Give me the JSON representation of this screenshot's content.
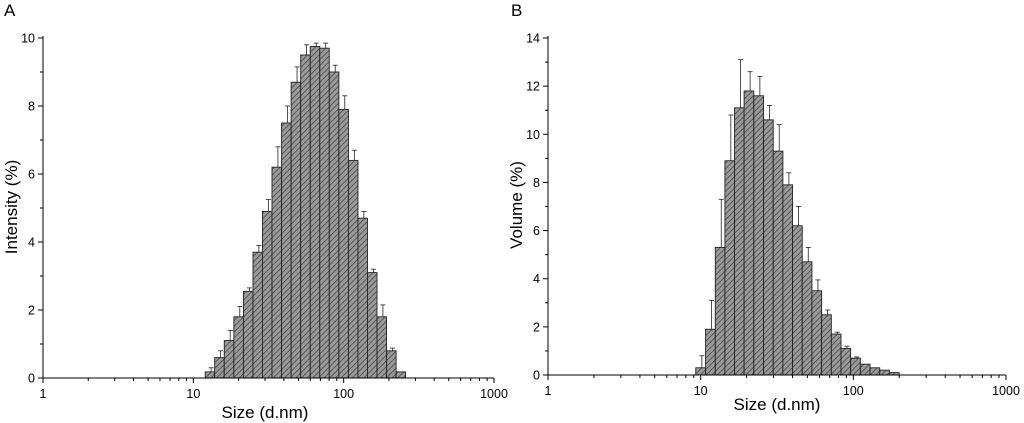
{
  "chart_data": [
    {
      "type": "bar",
      "panel_label": "A",
      "xlabel": "Size (d.nm)",
      "ylabel": "Intensity (%)",
      "xscale": "log",
      "xlim": [
        1,
        1000
      ],
      "ylim": [
        0,
        10
      ],
      "xticks": [
        1,
        10,
        100,
        1000
      ],
      "xtick_labels": [
        "1",
        "10",
        "100",
        "1000"
      ],
      "yticks": [
        0,
        2,
        4,
        6,
        8,
        10
      ],
      "ytick_labels": [
        "0",
        "2",
        "4",
        "6",
        "8",
        "10"
      ],
      "grid": false,
      "bars": [
        {
          "x": 12.9,
          "y": 0.18,
          "err": 0.12
        },
        {
          "x": 14.9,
          "y": 0.6,
          "err": 0.2
        },
        {
          "x": 17.3,
          "y": 1.1,
          "err": 0.3
        },
        {
          "x": 20.0,
          "y": 1.8,
          "err": 0.3
        },
        {
          "x": 23.2,
          "y": 2.55,
          "err": 0.1
        },
        {
          "x": 26.8,
          "y": 3.7,
          "err": 0.2
        },
        {
          "x": 31.0,
          "y": 4.9,
          "err": 0.35
        },
        {
          "x": 35.9,
          "y": 6.2,
          "err": 0.6
        },
        {
          "x": 41.6,
          "y": 7.5,
          "err": 0.5
        },
        {
          "x": 48.1,
          "y": 8.7,
          "err": 0.45
        },
        {
          "x": 55.7,
          "y": 9.5,
          "err": 0.3
        },
        {
          "x": 64.5,
          "y": 9.75,
          "err": 0.1
        },
        {
          "x": 74.6,
          "y": 9.7,
          "err": 0.15
        },
        {
          "x": 86.3,
          "y": 9.0,
          "err": 0.2
        },
        {
          "x": 100.0,
          "y": 7.9,
          "err": 0.4
        },
        {
          "x": 115.7,
          "y": 6.4,
          "err": 0.3
        },
        {
          "x": 133.9,
          "y": 4.7,
          "err": 0.2
        },
        {
          "x": 154.9,
          "y": 3.1,
          "err": 0.1
        },
        {
          "x": 179.3,
          "y": 1.8,
          "err": 0.35
        },
        {
          "x": 207.5,
          "y": 0.8,
          "err": 0.08
        },
        {
          "x": 240.1,
          "y": 0.18,
          "err": 0.0
        }
      ]
    },
    {
      "type": "bar",
      "panel_label": "B",
      "xlabel": "Size (d.nm)",
      "ylabel": "Volume (%)",
      "xscale": "log",
      "xlim": [
        1,
        1000
      ],
      "ylim": [
        0,
        14
      ],
      "xticks": [
        1,
        10,
        100,
        1000
      ],
      "xtick_labels": [
        "1",
        "10",
        "100",
        "1000"
      ],
      "yticks": [
        0,
        2,
        4,
        6,
        8,
        10,
        12,
        14
      ],
      "ytick_labels": [
        "0",
        "2",
        "4",
        "6",
        "8",
        "10",
        "12",
        "14"
      ],
      "grid": false,
      "bars": [
        {
          "x": 10.0,
          "y": 0.3,
          "err": 0.5
        },
        {
          "x": 11.6,
          "y": 1.9,
          "err": 1.2
        },
        {
          "x": 13.4,
          "y": 5.3,
          "err": 2.0
        },
        {
          "x": 15.5,
          "y": 8.9,
          "err": 1.9
        },
        {
          "x": 17.9,
          "y": 11.1,
          "err": 2.0
        },
        {
          "x": 20.7,
          "y": 11.8,
          "err": 0.8
        },
        {
          "x": 24.0,
          "y": 11.6,
          "err": 0.8
        },
        {
          "x": 27.8,
          "y": 10.6,
          "err": 0.6
        },
        {
          "x": 32.1,
          "y": 9.3,
          "err": 1.1
        },
        {
          "x": 37.2,
          "y": 7.9,
          "err": 0.5
        },
        {
          "x": 43.0,
          "y": 6.2,
          "err": 0.8
        },
        {
          "x": 49.8,
          "y": 4.7,
          "err": 0.6
        },
        {
          "x": 57.6,
          "y": 3.5,
          "err": 0.45
        },
        {
          "x": 66.7,
          "y": 2.5,
          "err": 0.2
        },
        {
          "x": 77.2,
          "y": 1.7,
          "err": 0.08
        },
        {
          "x": 89.3,
          "y": 1.1,
          "err": 0.1
        },
        {
          "x": 103.3,
          "y": 0.7,
          "err": 0.05
        },
        {
          "x": 119.6,
          "y": 0.45,
          "err": 0.0
        },
        {
          "x": 138.4,
          "y": 0.3,
          "err": 0.0
        },
        {
          "x": 160.2,
          "y": 0.2,
          "err": 0.0
        },
        {
          "x": 185.4,
          "y": 0.1,
          "err": 0.0
        }
      ]
    }
  ]
}
